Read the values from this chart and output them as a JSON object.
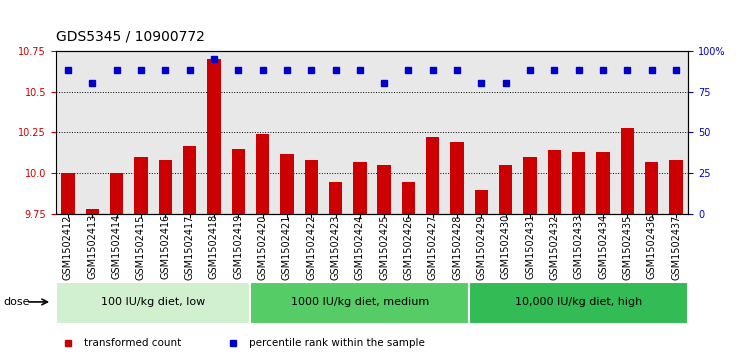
{
  "title": "GDS5345 / 10900772",
  "categories": [
    "GSM1502412",
    "GSM1502413",
    "GSM1502414",
    "GSM1502415",
    "GSM1502416",
    "GSM1502417",
    "GSM1502418",
    "GSM1502419",
    "GSM1502420",
    "GSM1502421",
    "GSM1502422",
    "GSM1502423",
    "GSM1502424",
    "GSM1502425",
    "GSM1502426",
    "GSM1502427",
    "GSM1502428",
    "GSM1502429",
    "GSM1502430",
    "GSM1502431",
    "GSM1502432",
    "GSM1502433",
    "GSM1502434",
    "GSM1502435",
    "GSM1502436",
    "GSM1502437"
  ],
  "bar_values": [
    10.0,
    9.78,
    10.0,
    10.1,
    10.08,
    10.17,
    10.7,
    10.15,
    10.24,
    10.12,
    10.08,
    9.95,
    10.07,
    10.05,
    9.95,
    10.22,
    10.19,
    9.9,
    10.05,
    10.1,
    10.14,
    10.13,
    10.13,
    10.28,
    10.07,
    10.08
  ],
  "percentile_values": [
    88,
    80,
    88,
    88,
    88,
    88,
    95,
    88,
    88,
    88,
    88,
    88,
    88,
    80,
    88,
    88,
    88,
    80,
    80,
    88,
    88,
    88,
    88,
    88,
    88,
    88
  ],
  "bar_color": "#cc0000",
  "dot_color": "#0000cc",
  "ylim_left": [
    9.75,
    10.75
  ],
  "ylim_right": [
    0,
    100
  ],
  "yticks_left": [
    9.75,
    10.0,
    10.25,
    10.5,
    10.75
  ],
  "yticks_right": [
    0,
    25,
    50,
    75,
    100
  ],
  "grid_lines": [
    10.0,
    10.25,
    10.5
  ],
  "groups": [
    {
      "label": "100 IU/kg diet, low",
      "start": 0,
      "end": 7
    },
    {
      "label": "1000 IU/kg diet, medium",
      "start": 8,
      "end": 16
    },
    {
      "label": "10,000 IU/kg diet, high",
      "start": 17,
      "end": 25
    }
  ],
  "group_colors": [
    "#d0f0d0",
    "#55cc66",
    "#33bb55"
  ],
  "dose_label": "dose",
  "legend_items": [
    {
      "label": "transformed count",
      "color": "#cc0000"
    },
    {
      "label": "percentile rank within the sample",
      "color": "#0000cc"
    }
  ],
  "bg_color": "#e8e8e8",
  "title_fontsize": 10,
  "tick_fontsize": 7,
  "group_fontsize": 8
}
